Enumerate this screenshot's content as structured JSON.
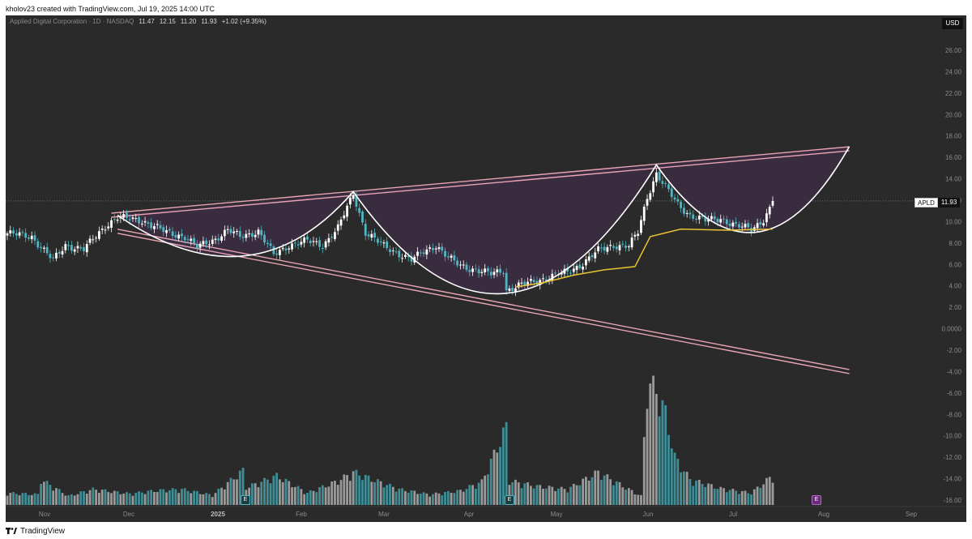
{
  "header": {
    "text": "kholov23 created with TradingView.com, Jul 19, 2025 14:00 UTC"
  },
  "legend": {
    "title": "Applied Digital Corporation · 1D · NASDAQ",
    "open": "11.47",
    "high": "12.15",
    "low": "11.20",
    "close": "11.93",
    "change": "+1.02 (+9.35%)"
  },
  "currency": "USD",
  "price_tag": {
    "symbol": "APLD",
    "price": "11.93"
  },
  "earnings": {
    "label": "E",
    "future_label": "E"
  },
  "footer": {
    "brand": "TradingView"
  },
  "colors": {
    "background": "#2a2a2a",
    "up_candle": "#ffffff",
    "down_candle": "#4fb6c3",
    "volume_up": "#9a9a9a",
    "volume_down": "#3f8e96",
    "trendline": "#e8a3b4",
    "fill": "#3a2c40",
    "cup_curve": "#ffffff",
    "moving_average": "#e8c430"
  },
  "chart_data": {
    "type": "candlestick",
    "x_ticks": [
      "Nov",
      "Dec",
      "2025",
      "Feb",
      "Mar",
      "Apr",
      "May",
      "Jun",
      "Jul",
      "Aug",
      "Sep"
    ],
    "y_ticks": [
      "26.00",
      "24.00",
      "22.00",
      "20.00",
      "18.00",
      "16.00",
      "14.00",
      "12.00",
      "10.00",
      "8.00",
      "6.00",
      "4.00",
      "2.00",
      "0.0000",
      "-2.00",
      "-4.00",
      "-6.00",
      "-8.00",
      "-10.00",
      "-12.00",
      "-14.00",
      "-16.00"
    ],
    "last_price": 11.93,
    "price_segments": [
      {
        "i": 0,
        "p": 8.9
      },
      {
        "i": 8,
        "p": 8.6
      },
      {
        "i": 12,
        "p": 7.3
      },
      {
        "i": 15,
        "p": 6.4
      },
      {
        "i": 19,
        "p": 7.8
      },
      {
        "i": 25,
        "p": 7.4
      },
      {
        "i": 32,
        "p": 9.6
      },
      {
        "i": 36,
        "p": 10.4
      },
      {
        "i": 44,
        "p": 10.1
      },
      {
        "i": 52,
        "p": 9.0
      },
      {
        "i": 58,
        "p": 8.6
      },
      {
        "i": 62,
        "p": 7.6
      },
      {
        "i": 68,
        "p": 8.4
      },
      {
        "i": 72,
        "p": 9.2
      },
      {
        "i": 76,
        "p": 8.6
      },
      {
        "i": 82,
        "p": 9.1
      },
      {
        "i": 87,
        "p": 6.9
      },
      {
        "i": 92,
        "p": 7.8
      },
      {
        "i": 98,
        "p": 8.2
      },
      {
        "i": 103,
        "p": 7.8
      },
      {
        "i": 108,
        "p": 9.4
      },
      {
        "i": 113,
        "p": 12.6
      },
      {
        "i": 117,
        "p": 9.0
      },
      {
        "i": 123,
        "p": 7.7
      },
      {
        "i": 128,
        "p": 7.0
      },
      {
        "i": 132,
        "p": 6.4
      },
      {
        "i": 136,
        "p": 7.2
      },
      {
        "i": 140,
        "p": 7.8
      },
      {
        "i": 144,
        "p": 6.6
      },
      {
        "i": 148,
        "p": 5.9
      },
      {
        "i": 154,
        "p": 5.4
      },
      {
        "i": 158,
        "p": 5.1
      },
      {
        "i": 162,
        "p": 5.5
      },
      {
        "i": 163,
        "p": 3.6
      },
      {
        "i": 168,
        "p": 4.1
      },
      {
        "i": 173,
        "p": 4.5
      },
      {
        "i": 178,
        "p": 4.9
      },
      {
        "i": 183,
        "p": 5.3
      },
      {
        "i": 188,
        "p": 6.1
      },
      {
        "i": 193,
        "p": 7.3
      },
      {
        "i": 198,
        "p": 7.8
      },
      {
        "i": 203,
        "p": 7.7
      },
      {
        "i": 206,
        "p": 9.0
      },
      {
        "i": 209,
        "p": 12.3
      },
      {
        "i": 212,
        "p": 14.5
      },
      {
        "i": 215,
        "p": 13.2
      },
      {
        "i": 219,
        "p": 11.6
      },
      {
        "i": 223,
        "p": 10.6
      },
      {
        "i": 228,
        "p": 10.1
      },
      {
        "i": 233,
        "p": 10.3
      },
      {
        "i": 238,
        "p": 9.6
      },
      {
        "i": 243,
        "p": 9.3
      },
      {
        "i": 247,
        "p": 10.2
      },
      {
        "i": 249,
        "p": 11.2
      },
      {
        "i": 250,
        "p": 11.93
      }
    ],
    "volume_bars": [
      {
        "i": 0,
        "v": 1.6
      },
      {
        "i": 10,
        "v": 1.4
      },
      {
        "i": 11,
        "v": 3.4
      },
      {
        "i": 20,
        "v": 1.2
      },
      {
        "i": 28,
        "v": 2.1
      },
      {
        "i": 40,
        "v": 1.5
      },
      {
        "i": 48,
        "v": 1.9
      },
      {
        "i": 57,
        "v": 2.1
      },
      {
        "i": 67,
        "v": 1.3
      },
      {
        "i": 77,
        "v": 4.6
      },
      {
        "i": 78,
        "v": 2.3
      },
      {
        "i": 88,
        "v": 3.9
      },
      {
        "i": 98,
        "v": 1.6
      },
      {
        "i": 108,
        "v": 3.2
      },
      {
        "i": 113,
        "v": 4.4
      },
      {
        "i": 118,
        "v": 3.6
      },
      {
        "i": 128,
        "v": 2.1
      },
      {
        "i": 138,
        "v": 1.4
      },
      {
        "i": 148,
        "v": 1.9
      },
      {
        "i": 155,
        "v": 3.1
      },
      {
        "i": 163,
        "v": 10.4
      },
      {
        "i": 164,
        "v": 3.2
      },
      {
        "i": 173,
        "v": 2.5
      },
      {
        "i": 183,
        "v": 2.1
      },
      {
        "i": 193,
        "v": 4.4
      },
      {
        "i": 202,
        "v": 2.3
      },
      {
        "i": 207,
        "v": 1.2
      },
      {
        "i": 209,
        "v": 16.4
      },
      {
        "i": 212,
        "v": 15.2
      },
      {
        "i": 215,
        "v": 12.2
      },
      {
        "i": 218,
        "v": 6.4
      },
      {
        "i": 223,
        "v": 3.4
      },
      {
        "i": 233,
        "v": 2.2
      },
      {
        "i": 243,
        "v": 1.6
      },
      {
        "i": 249,
        "v": 3.6
      },
      {
        "i": 250,
        "v": 3.7
      }
    ],
    "drawings": {
      "upper_trendline": [
        {
          "i": 34,
          "p": 10.6
        },
        {
          "i": 275,
          "p": 16.8
        }
      ],
      "lower_trendline": [
        {
          "i": 36,
          "p": 9.1
        },
        {
          "i": 275,
          "p": -4.0
        }
      ],
      "cup_pivots": [
        {
          "i": 36,
          "p": 10.6
        },
        {
          "i": 113,
          "p": 12.8
        },
        {
          "i": 212,
          "p": 15.3
        },
        {
          "i": 275,
          "p": 17.0
        }
      ],
      "cup_bottoms": [
        {
          "i": 80,
          "p": 6.8
        },
        {
          "i": 163,
          "p": 3.3
        },
        {
          "i": 245,
          "p": 9.0
        }
      ],
      "moving_average": [
        {
          "i": 166,
          "p": 3.9
        },
        {
          "i": 175,
          "p": 4.3
        },
        {
          "i": 185,
          "p": 5.0
        },
        {
          "i": 195,
          "p": 5.5
        },
        {
          "i": 205,
          "p": 5.8
        },
        {
          "i": 210,
          "p": 8.6
        },
        {
          "i": 220,
          "p": 9.3
        },
        {
          "i": 235,
          "p": 9.2
        },
        {
          "i": 250,
          "p": 9.3
        }
      ]
    }
  }
}
